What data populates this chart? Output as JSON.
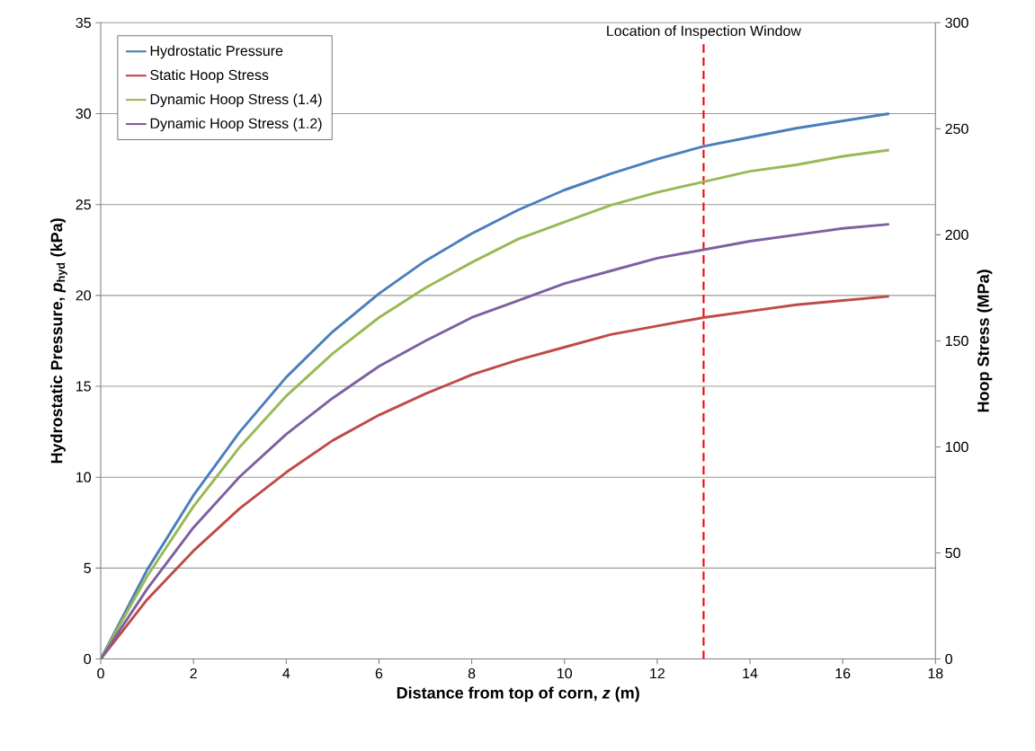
{
  "chart_data": {
    "type": "line",
    "xlabel": "Distance from top of corn, *z* (m)",
    "ylabel": "Hydrostatic Pressure, *p*$_{hyd}$ (kPa)",
    "y2label": "Hoop Stress (MPa)",
    "x": [
      0,
      1,
      2,
      3,
      4,
      5,
      6,
      7,
      8,
      9,
      10,
      11,
      12,
      13,
      14,
      15,
      16,
      17
    ],
    "xlim": [
      0,
      18
    ],
    "xticks": [
      0,
      2,
      4,
      6,
      8,
      10,
      12,
      14,
      16,
      18
    ],
    "ylim": [
      0,
      35
    ],
    "yticks": [
      0,
      5,
      10,
      15,
      20,
      25,
      30,
      35
    ],
    "y2lim": [
      0,
      300
    ],
    "y2ticks": [
      0,
      50,
      100,
      150,
      200,
      250,
      300
    ],
    "series": [
      {
        "name": "Hydrostatic Pressure",
        "color": "#4a7ebb",
        "values": [
          0,
          4.9,
          9.0,
          12.5,
          15.5,
          18.0,
          20.1,
          21.9,
          23.4,
          24.7,
          25.8,
          26.7,
          27.5,
          28.2,
          28.7,
          29.2,
          29.6,
          30.0
        ]
      },
      {
        "name": "Static Hoop Stress",
        "color": "#be4b48",
        "axis": "y2",
        "values": [
          0,
          28,
          51,
          71,
          88,
          103,
          115,
          125,
          134,
          141,
          147,
          153,
          157,
          161,
          164,
          167,
          169,
          171
        ]
      },
      {
        "name": "Dynamic Hoop Stress (1.4)",
        "color": "#98b954",
        "axis": "y2",
        "values": [
          0,
          39,
          72,
          100,
          124,
          144,
          161,
          175,
          187,
          198,
          206,
          214,
          220,
          225,
          230,
          233,
          237,
          240
        ]
      },
      {
        "name": "Dynamic Hoop Stress (1.2)",
        "color": "#7d60a0",
        "axis": "y2",
        "values": [
          0,
          33,
          62,
          86,
          106,
          123,
          138,
          150,
          161,
          169,
          177,
          183,
          189,
          193,
          197,
          200,
          203,
          205
        ]
      }
    ],
    "ref_lines": [
      {
        "axis": "x",
        "value": 13,
        "label": "Location of Inspection Window",
        "color": "#ff0000",
        "line_style": "dashed"
      }
    ],
    "grid": "y",
    "legend": "top left"
  }
}
